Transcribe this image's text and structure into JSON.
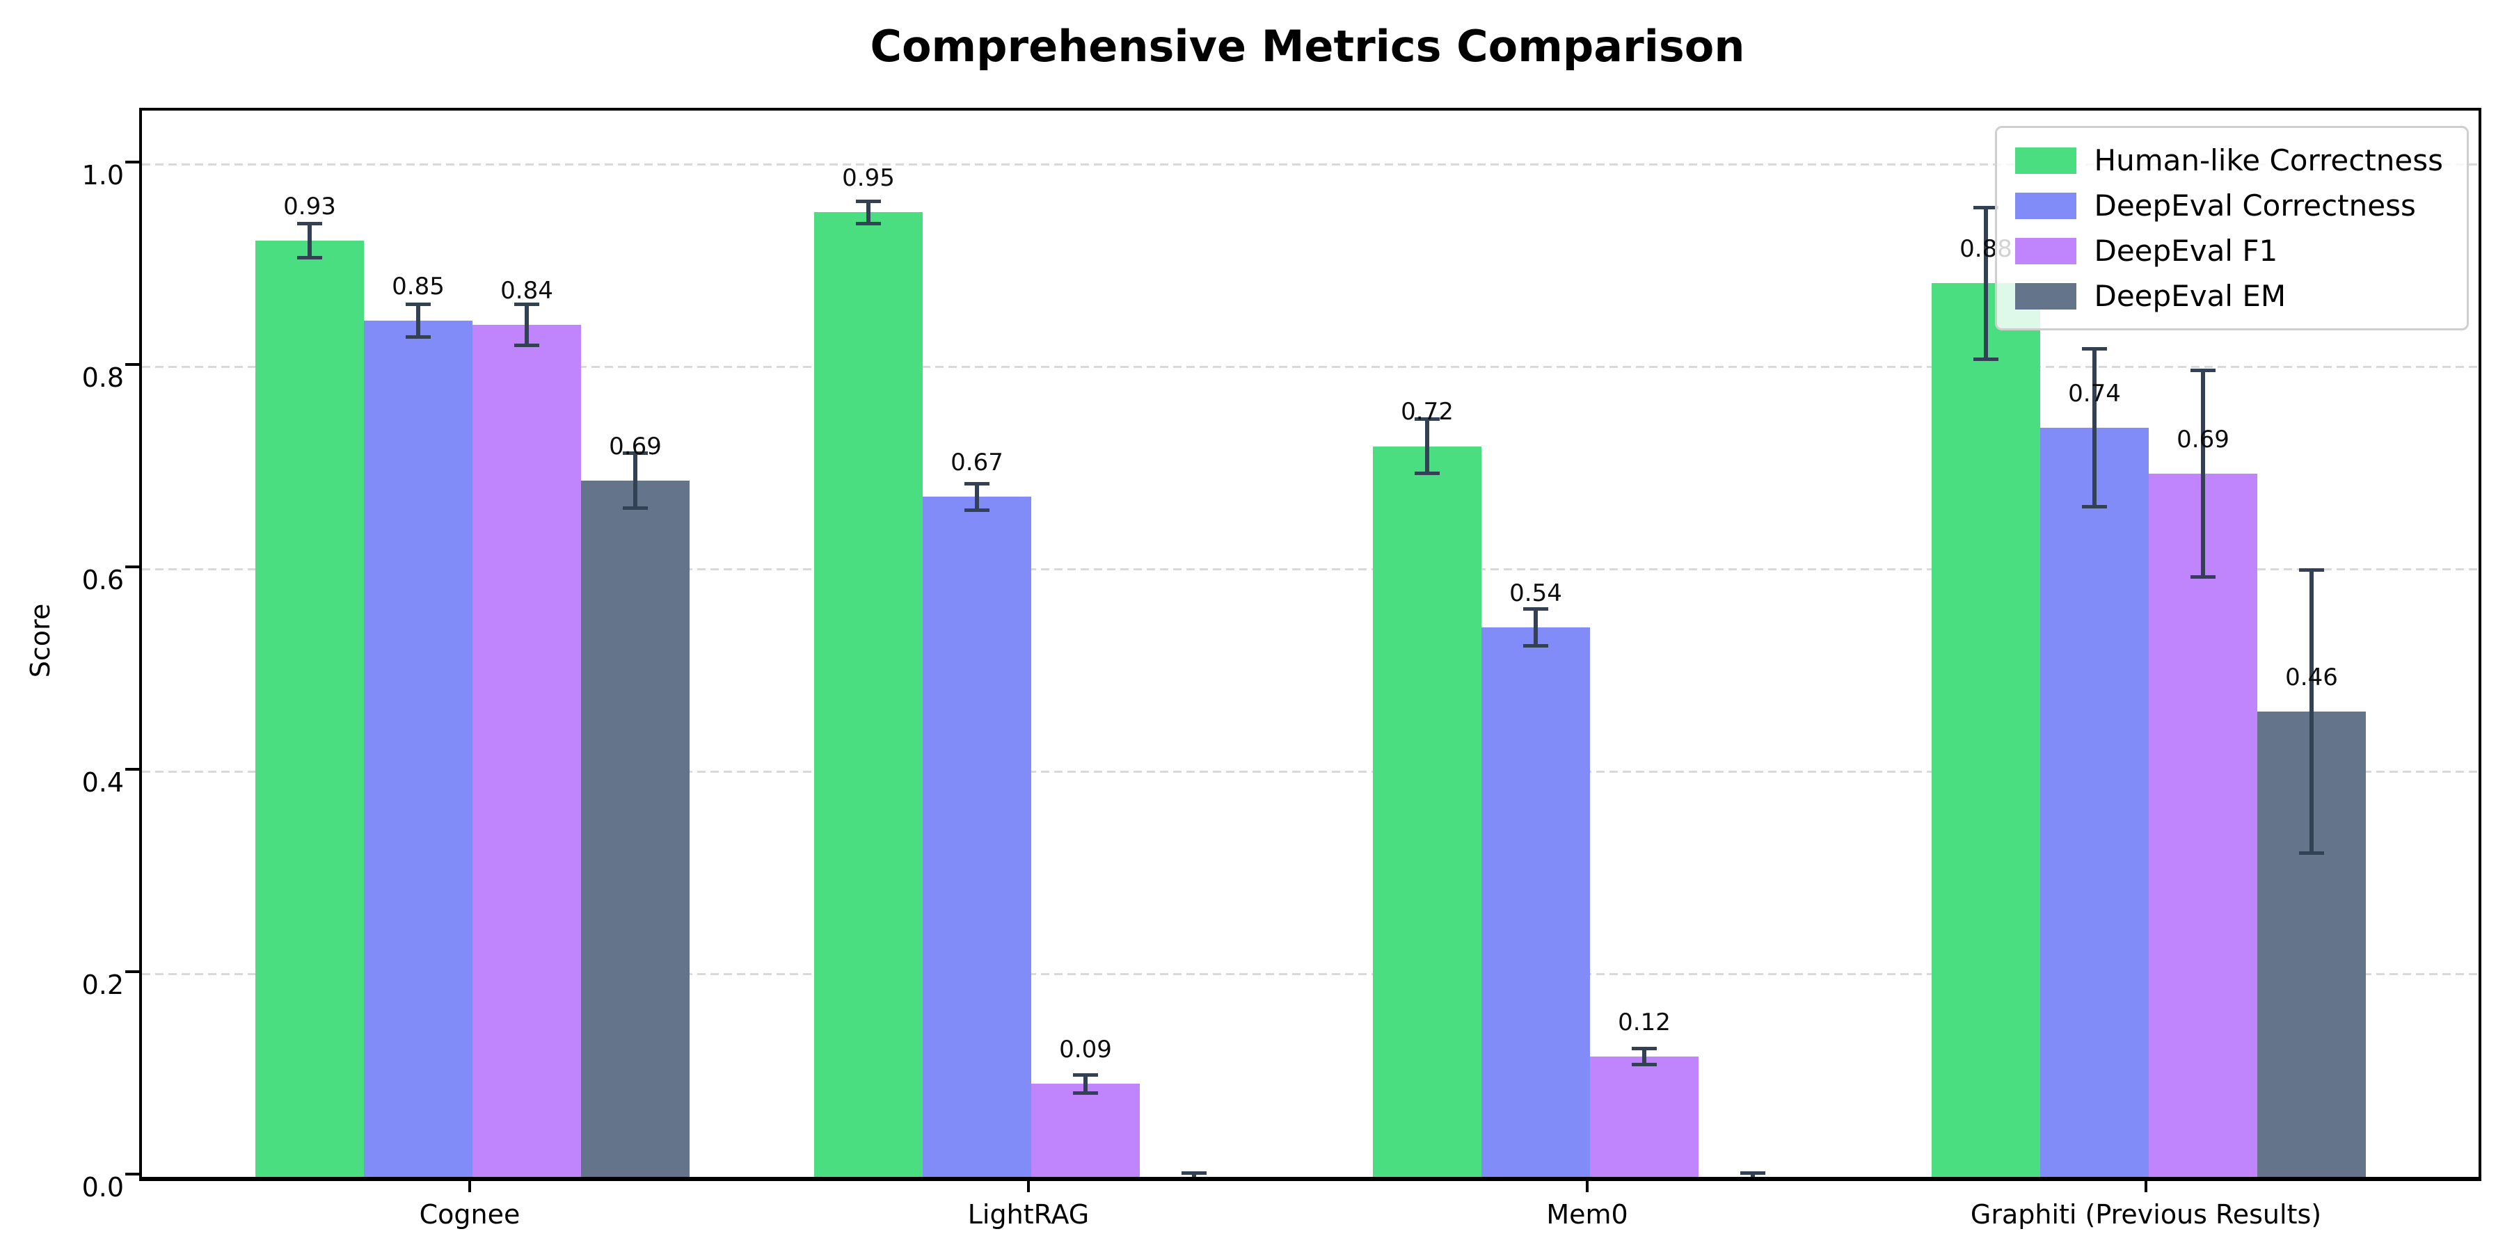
{
  "title": "Comprehensive Metrics Comparison",
  "chart_data": {
    "type": "bar",
    "title": "Comprehensive Metrics Comparison",
    "xlabel": "",
    "ylabel": "Score",
    "ylim": [
      0.0,
      1.05
    ],
    "yticks": [
      "0.0",
      "0.2",
      "0.4",
      "0.6",
      "0.8",
      "1.0"
    ],
    "grid": "horizontal-dashed",
    "legend_position": "upper-right",
    "error_bars": true,
    "error_color": "#334155",
    "categories": [
      "Cognee",
      "LightRAG",
      "Mem0",
      "Graphiti (Previous Results)"
    ],
    "series": [
      {
        "name": "Human-like Correctness",
        "color": "#4ade80",
        "values": [
          0.925,
          0.953,
          0.722,
          0.883
        ],
        "errors": [
          0.017,
          0.011,
          0.027,
          0.075
        ],
        "labels": [
          "0.93",
          "0.95",
          "0.72",
          "0.88"
        ]
      },
      {
        "name": "DeepEval Correctness",
        "color": "#818cf8",
        "values": [
          0.846,
          0.672,
          0.543,
          0.74
        ],
        "errors": [
          0.016,
          0.013,
          0.018,
          0.078
        ],
        "labels": [
          "0.85",
          "0.67",
          "0.54",
          "0.74"
        ]
      },
      {
        "name": "DeepEval F1",
        "color": "#c084fc",
        "values": [
          0.842,
          0.092,
          0.119,
          0.695
        ],
        "errors": [
          0.02,
          0.009,
          0.008,
          0.102
        ],
        "labels": [
          "0.84",
          "0.09",
          "0.12",
          "0.69"
        ]
      },
      {
        "name": "DeepEval EM",
        "color": "#64748b",
        "values": [
          0.688,
          0.0,
          0.0,
          0.46
        ],
        "errors": [
          0.027,
          0.004,
          0.004,
          0.14
        ],
        "labels": [
          "0.69",
          "",
          "",
          "0.46"
        ]
      }
    ]
  }
}
